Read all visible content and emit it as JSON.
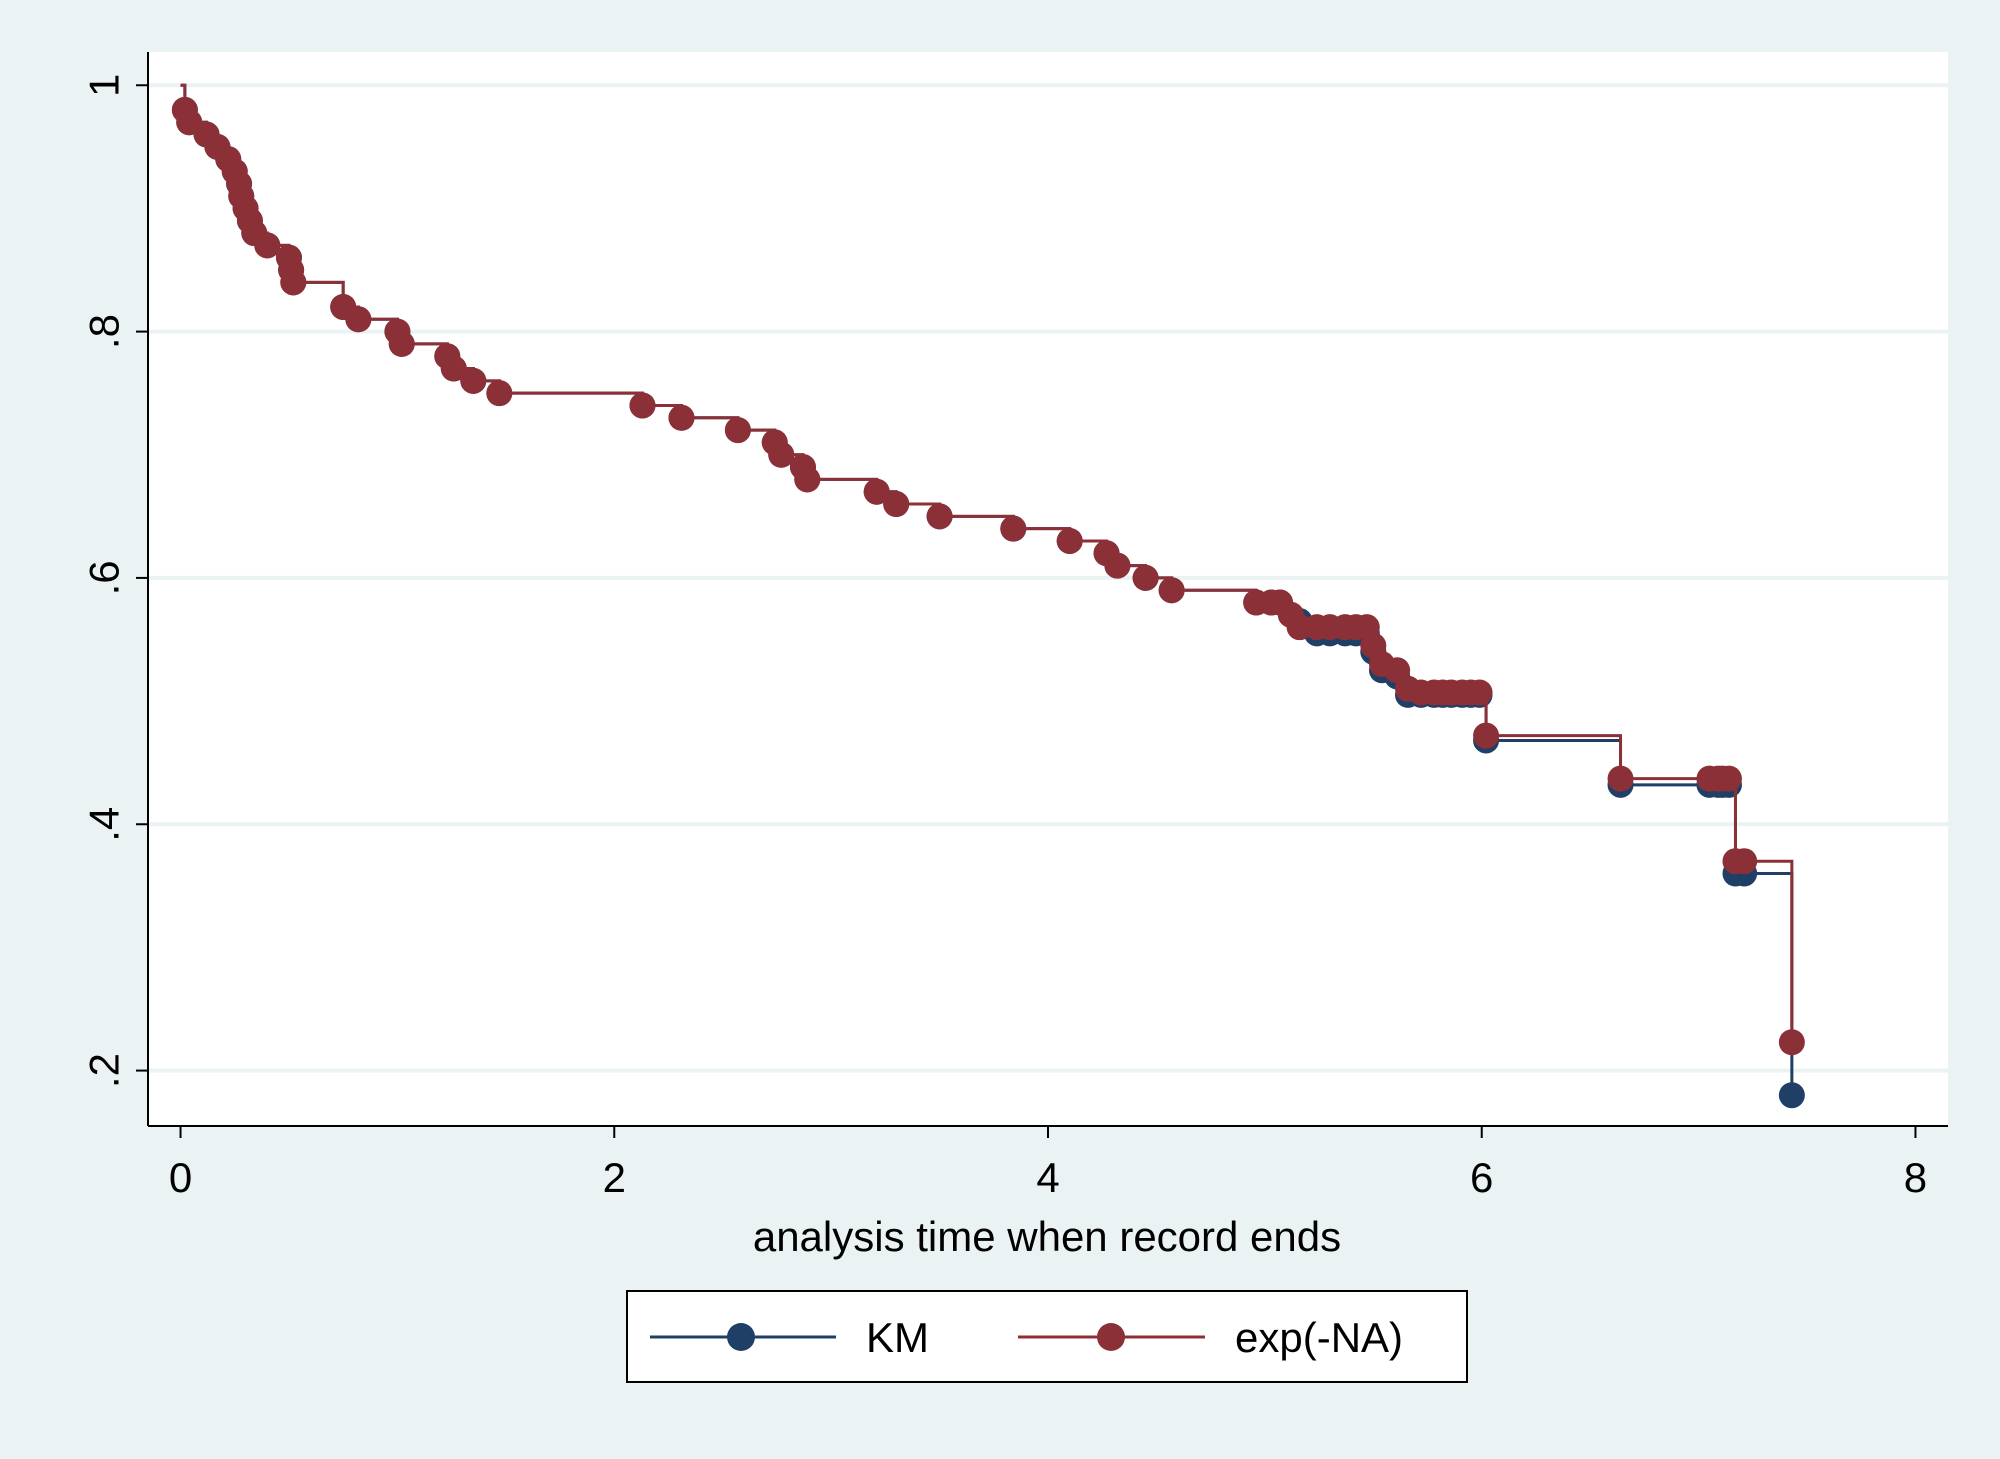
{
  "chart_data": {
    "type": "line",
    "title": "",
    "xlabel": "analysis time when record ends",
    "ylabel": "",
    "xlim": [
      -0.15,
      8.15
    ],
    "ylim": [
      0.155,
      1.027
    ],
    "x_ticks": [
      0,
      2,
      4,
      6,
      8
    ],
    "x_tick_labels": [
      "0",
      "2",
      "4",
      "6",
      "8"
    ],
    "y_ticks": [
      0.2,
      0.4,
      0.6,
      0.8,
      1
    ],
    "y_tick_labels": [
      ".2",
      ".4",
      ".6",
      ".8",
      "1"
    ],
    "grid": "horizontal",
    "legend_position": "bottom",
    "series": [
      {
        "name": "KM",
        "color": "#1f3f66",
        "points": [
          [
            0.02,
            0.98
          ],
          [
            0.04,
            0.97
          ],
          [
            0.12,
            0.96
          ],
          [
            0.17,
            0.95
          ],
          [
            0.22,
            0.94
          ],
          [
            0.25,
            0.93
          ],
          [
            0.27,
            0.92
          ],
          [
            0.28,
            0.91
          ],
          [
            0.3,
            0.9
          ],
          [
            0.32,
            0.89
          ],
          [
            0.34,
            0.88
          ],
          [
            0.4,
            0.87
          ],
          [
            0.5,
            0.86
          ],
          [
            0.51,
            0.85
          ],
          [
            0.52,
            0.84
          ],
          [
            0.75,
            0.82
          ],
          [
            0.82,
            0.81
          ],
          [
            1.0,
            0.8
          ],
          [
            1.02,
            0.79
          ],
          [
            1.23,
            0.78
          ],
          [
            1.26,
            0.77
          ],
          [
            1.35,
            0.76
          ],
          [
            1.47,
            0.75
          ],
          [
            2.13,
            0.74
          ],
          [
            2.31,
            0.73
          ],
          [
            2.57,
            0.72
          ],
          [
            2.74,
            0.71
          ],
          [
            2.77,
            0.7
          ],
          [
            2.87,
            0.69
          ],
          [
            2.89,
            0.68
          ],
          [
            3.21,
            0.67
          ],
          [
            3.3,
            0.66
          ],
          [
            3.5,
            0.65
          ],
          [
            3.84,
            0.64
          ],
          [
            4.1,
            0.63
          ],
          [
            4.27,
            0.62
          ],
          [
            4.32,
            0.61
          ],
          [
            4.45,
            0.6
          ],
          [
            4.57,
            0.59
          ],
          [
            4.96,
            0.58
          ],
          [
            5.03,
            0.58
          ],
          [
            5.07,
            0.58
          ],
          [
            5.12,
            0.57
          ],
          [
            5.16,
            0.565
          ],
          [
            5.24,
            0.555
          ],
          [
            5.3,
            0.555
          ],
          [
            5.37,
            0.555
          ],
          [
            5.42,
            0.555
          ],
          [
            5.47,
            0.555
          ],
          [
            5.5,
            0.54
          ],
          [
            5.54,
            0.525
          ],
          [
            5.61,
            0.52
          ],
          [
            5.66,
            0.505
          ],
          [
            5.72,
            0.505
          ],
          [
            5.78,
            0.505
          ],
          [
            5.82,
            0.505
          ],
          [
            5.86,
            0.505
          ],
          [
            5.91,
            0.505
          ],
          [
            5.95,
            0.505
          ],
          [
            5.99,
            0.505
          ],
          [
            6.02,
            0.468
          ],
          [
            6.64,
            0.432
          ],
          [
            7.05,
            0.432
          ],
          [
            7.09,
            0.432
          ],
          [
            7.11,
            0.432
          ],
          [
            7.14,
            0.432
          ],
          [
            7.17,
            0.36
          ],
          [
            7.21,
            0.36
          ],
          [
            7.43,
            0.18
          ]
        ]
      },
      {
        "name": "exp(-NA)",
        "color": "#8c3038",
        "points": [
          [
            0.02,
            0.98
          ],
          [
            0.04,
            0.97
          ],
          [
            0.12,
            0.96
          ],
          [
            0.17,
            0.95
          ],
          [
            0.22,
            0.94
          ],
          [
            0.25,
            0.93
          ],
          [
            0.27,
            0.92
          ],
          [
            0.28,
            0.91
          ],
          [
            0.3,
            0.9
          ],
          [
            0.32,
            0.89
          ],
          [
            0.34,
            0.88
          ],
          [
            0.4,
            0.87
          ],
          [
            0.5,
            0.86
          ],
          [
            0.51,
            0.85
          ],
          [
            0.52,
            0.84
          ],
          [
            0.75,
            0.82
          ],
          [
            0.82,
            0.81
          ],
          [
            1.0,
            0.8
          ],
          [
            1.02,
            0.79
          ],
          [
            1.23,
            0.78
          ],
          [
            1.26,
            0.77
          ],
          [
            1.35,
            0.76
          ],
          [
            1.47,
            0.75
          ],
          [
            2.13,
            0.74
          ],
          [
            2.31,
            0.73
          ],
          [
            2.57,
            0.72
          ],
          [
            2.74,
            0.71
          ],
          [
            2.77,
            0.7
          ],
          [
            2.87,
            0.69
          ],
          [
            2.89,
            0.68
          ],
          [
            3.21,
            0.67
          ],
          [
            3.3,
            0.66
          ],
          [
            3.5,
            0.65
          ],
          [
            3.84,
            0.64
          ],
          [
            4.1,
            0.63
          ],
          [
            4.27,
            0.62
          ],
          [
            4.32,
            0.61
          ],
          [
            4.45,
            0.6
          ],
          [
            4.57,
            0.59
          ],
          [
            4.96,
            0.58
          ],
          [
            5.03,
            0.58
          ],
          [
            5.07,
            0.58
          ],
          [
            5.12,
            0.57
          ],
          [
            5.16,
            0.56
          ],
          [
            5.24,
            0.56
          ],
          [
            5.3,
            0.56
          ],
          [
            5.37,
            0.56
          ],
          [
            5.42,
            0.56
          ],
          [
            5.47,
            0.56
          ],
          [
            5.5,
            0.545
          ],
          [
            5.54,
            0.53
          ],
          [
            5.61,
            0.525
          ],
          [
            5.66,
            0.51
          ],
          [
            5.72,
            0.507
          ],
          [
            5.78,
            0.507
          ],
          [
            5.82,
            0.507
          ],
          [
            5.86,
            0.507
          ],
          [
            5.91,
            0.507
          ],
          [
            5.95,
            0.507
          ],
          [
            5.99,
            0.507
          ],
          [
            6.02,
            0.472
          ],
          [
            6.64,
            0.437
          ],
          [
            7.05,
            0.437
          ],
          [
            7.09,
            0.437
          ],
          [
            7.11,
            0.437
          ],
          [
            7.14,
            0.437
          ],
          [
            7.17,
            0.37
          ],
          [
            7.21,
            0.37
          ],
          [
            7.43,
            0.223
          ]
        ]
      }
    ]
  },
  "legend": {
    "items": [
      {
        "label": "KM",
        "color": "#1f3f66"
      },
      {
        "label": "exp(-NA)",
        "color": "#8c3038"
      }
    ]
  }
}
